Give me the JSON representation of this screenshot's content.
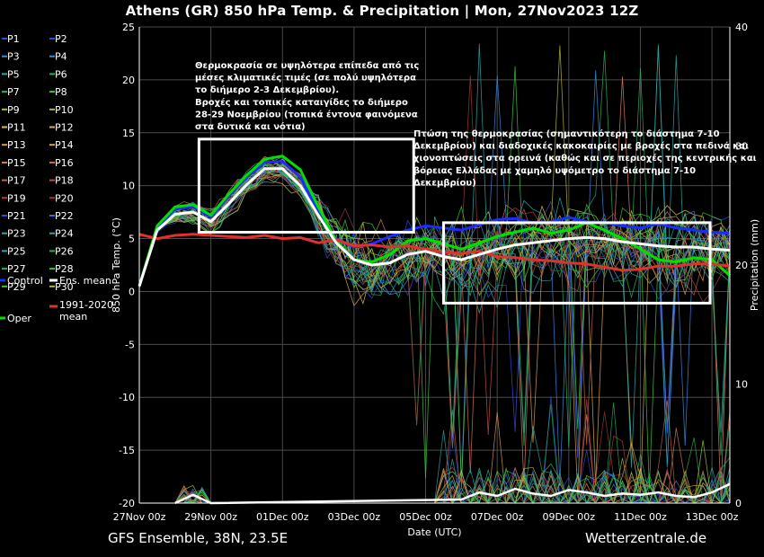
{
  "title": "Athens  (GR)  850 hPa Temp. & Precipitation | Mon, 27Nov2023 12Z",
  "footer": {
    "left": "GFS Ensemble, 38N, 23.5E",
    "right": "Wetterzentrale.de"
  },
  "chart_data": {
    "type": "line",
    "xlabel": "Date (UTC)",
    "ylabel": "850 hPa Temp. (°C)",
    "y2label": "Precipitation (mm)",
    "ylim": [
      -20,
      25
    ],
    "y2lim": [
      0,
      40
    ],
    "yticks": [
      "25",
      "20",
      "15",
      "10",
      "5",
      "0",
      "-5",
      "-10",
      "-15",
      "-20"
    ],
    "y2ticks": [
      "40",
      "30",
      "20",
      "10",
      "0"
    ],
    "xticks": [
      "27Nov 00z",
      "29Nov 00z",
      "01Dec 00z",
      "03Dec 00z",
      "05Dec 00z",
      "07Dec 00z",
      "09Dec 00z",
      "11Dec 00z",
      "13Dec 00z"
    ],
    "x_hours_range": [
      0,
      396
    ],
    "grid": true,
    "legend_placement": "left outside",
    "legend": [
      {
        "name": "P1",
        "color": "#2f4fd0"
      },
      {
        "name": "P2",
        "color": "#2f4fd0"
      },
      {
        "name": "P3",
        "color": "#3a8ad8"
      },
      {
        "name": "P4",
        "color": "#3a8ad8"
      },
      {
        "name": "P5",
        "color": "#2ba8a8"
      },
      {
        "name": "P6",
        "color": "#27b060"
      },
      {
        "name": "P7",
        "color": "#27b060"
      },
      {
        "name": "P8",
        "color": "#3ec43e"
      },
      {
        "name": "P9",
        "color": "#9ccf2a"
      },
      {
        "name": "P10",
        "color": "#b6b93a"
      },
      {
        "name": "P11",
        "color": "#e0c040"
      },
      {
        "name": "P12",
        "color": "#d8b040"
      },
      {
        "name": "P13",
        "color": "#d89a50"
      },
      {
        "name": "P14",
        "color": "#d8a050"
      },
      {
        "name": "P15",
        "color": "#d88060"
      },
      {
        "name": "P16",
        "color": "#d07060"
      },
      {
        "name": "P17",
        "color": "#c06050"
      },
      {
        "name": "P18",
        "color": "#c05040"
      },
      {
        "name": "P19",
        "color": "#b04040"
      },
      {
        "name": "P20",
        "color": "#a03838"
      },
      {
        "name": "P21",
        "color": "#2f4fd0"
      },
      {
        "name": "P22",
        "color": "#3a6ad8"
      },
      {
        "name": "P23",
        "color": "#2ba8a8"
      },
      {
        "name": "P24",
        "color": "#2ba8a8"
      },
      {
        "name": "P25",
        "color": "#2ba8a8"
      },
      {
        "name": "P26",
        "color": "#27b060"
      },
      {
        "name": "P27",
        "color": "#27b060"
      },
      {
        "name": "P28",
        "color": "#3ec43e"
      },
      {
        "name": "P29",
        "color": "#3ec43e"
      },
      {
        "name": "P30",
        "color": "#b6b93a"
      },
      {
        "name": "Control",
        "color": "#1a2cff"
      },
      {
        "name": "Ens. mean",
        "color": "#ffffff"
      },
      {
        "name": "1991-2020 mean",
        "color": "#e03030"
      },
      {
        "name": "Oper",
        "color": "#00e000"
      }
    ],
    "series": [
      {
        "name": "Ens. mean",
        "x": [
          0,
          12,
          24,
          36,
          48,
          60,
          72,
          84,
          96,
          108,
          120,
          132,
          144,
          156,
          168,
          180,
          192,
          204,
          216,
          228,
          240,
          252,
          264,
          276,
          288,
          300,
          312,
          324,
          336,
          348,
          360,
          372,
          384,
          396
        ],
        "values": [
          0.5,
          5.8,
          7.3,
          7.5,
          6.6,
          8.3,
          10.1,
          11.6,
          11.6,
          10.0,
          7.2,
          4.6,
          3.0,
          2.5,
          2.7,
          3.5,
          3.8,
          3.3,
          3.0,
          3.5,
          4.0,
          4.4,
          4.6,
          4.8,
          5.0,
          5.1,
          5.0,
          4.7,
          4.5,
          4.3,
          4.2,
          4.2,
          4.0,
          3.9
        ]
      },
      {
        "name": "Control",
        "x": [
          0,
          12,
          24,
          36,
          48,
          60,
          72,
          84,
          96,
          108,
          120,
          132,
          144,
          156,
          168,
          180,
          192,
          204,
          216,
          228,
          240,
          252,
          264,
          276,
          288,
          300,
          312,
          324,
          336,
          348,
          360,
          372,
          384,
          396
        ],
        "values": [
          0.5,
          6.0,
          7.8,
          8.0,
          7.0,
          9.0,
          10.8,
          12.2,
          12.3,
          10.8,
          7.5,
          5.0,
          4.2,
          4.5,
          5.2,
          5.8,
          6.2,
          6.0,
          5.8,
          6.3,
          6.8,
          6.9,
          6.5,
          6.6,
          7.0,
          6.6,
          6.5,
          6.2,
          6.0,
          6.4,
          6.0,
          5.8,
          5.6,
          5.5
        ]
      },
      {
        "name": "Oper",
        "x": [
          0,
          12,
          24,
          36,
          48,
          60,
          72,
          84,
          96,
          108,
          120,
          132,
          144,
          156,
          168,
          180,
          192,
          204,
          216,
          228,
          240,
          252,
          264,
          276,
          288,
          300,
          312,
          324,
          336,
          348,
          360,
          372,
          384,
          396
        ],
        "values": [
          0.5,
          6.2,
          8.0,
          8.2,
          7.2,
          9.2,
          11.0,
          12.5,
          12.8,
          11.5,
          8.0,
          4.8,
          3.0,
          2.8,
          3.5,
          4.8,
          5.0,
          4.5,
          4.0,
          4.6,
          5.2,
          5.6,
          6.0,
          5.5,
          5.8,
          6.5,
          5.8,
          5.0,
          4.0,
          3.0,
          2.8,
          3.2,
          3.0,
          1.5
        ]
      },
      {
        "name": "1991-2020 mean",
        "x": [
          0,
          12,
          24,
          36,
          48,
          60,
          72,
          84,
          96,
          108,
          120,
          132,
          144,
          156,
          168,
          180,
          192,
          204,
          216,
          228,
          240,
          252,
          264,
          276,
          288,
          300,
          312,
          324,
          336,
          348,
          360,
          372,
          384,
          396
        ],
        "values": [
          5.4,
          5.0,
          5.3,
          5.4,
          5.3,
          5.2,
          5.1,
          5.3,
          5.0,
          5.1,
          4.6,
          4.9,
          4.3,
          4.4,
          4.2,
          4.3,
          4.0,
          3.7,
          3.6,
          3.8,
          3.3,
          3.2,
          3.0,
          2.9,
          2.7,
          2.6,
          2.3,
          2.0,
          2.1,
          2.4,
          2.4,
          2.6,
          2.6,
          2.4
        ]
      },
      {
        "name": "Ens. mean precipitation",
        "x": [
          24,
          36,
          48,
          216,
          228,
          240,
          252,
          264,
          276,
          288,
          300,
          312,
          324,
          336,
          348,
          360,
          372,
          384,
          396
        ],
        "values": [
          0,
          0.7,
          0,
          0.3,
          0.9,
          0.6,
          1.2,
          0.8,
          0.6,
          1.1,
          0.9,
          0.6,
          0.8,
          0.7,
          0.9,
          0.6,
          0.5,
          0.9,
          1.6
        ]
      }
    ],
    "annotations": [
      "Θερμοκρασία σε υψηλότερα επίπεδα από τις μέσες κλιματικές τιμές (σε πολύ υψηλότερα το διήμερο 2-3 Δεκεμβρίου). Βροχές και τοπικές καταιγίδες το διήμερο 28-29 Νοεμβρίου (τοπικά έντονα φαινόμενα στα δυτικά και νότια)",
      "Πτώση της θερμοκρασίας (σημαντικότερη το διάστημα 7-10 Δεκεμβρίου) και διαδοχικές κακοκαιρίες με βροχές στα πεδινά και χιονοπτώσεις στα ορεινά (καθώς και σε περιοχές της κεντρικής και βόρειας Ελλάδας με χαμηλό υψόμετρο το διάστημα 7-10 Δεκεμβρίου)"
    ],
    "annotation_lines": [
      [
        "Θερμοκρασία σε υψηλότερα επίπεδα από τις",
        "μέσες κλιματικές τιμές (σε πολύ υψηλότερα",
        "το διήμερο 2-3 Δεκεμβρίου).",
        "Βροχές και τοπικές καταιγίδες το διήμερο",
        "28-29 Νοεμβρίου (τοπικά έντονα φαινόμενα",
        "στα δυτικά και νότια)"
      ],
      [
        "Πτώση της θερμοκρασίας (σημαντικότερη το διάστημα 7-10",
        "Δεκεμβρίου) και διαδοχικές κακοκαιρίες με βροχές στα πεδινά και",
        "χιονοπτώσεις στα ορεινά (καθώς και σε περιοχές της κεντρικής και",
        "βόρειας Ελλάδας με χαμηλό υψόμετρο το διάστημα 7-10",
        "Δεκεμβρίου)"
      ]
    ],
    "highlight_boxes": [
      {
        "x_hours": [
          40,
          184
        ],
        "y_range": [
          5.6,
          14.4
        ]
      },
      {
        "x_hours": [
          204,
          420
        ],
        "y_range": [
          -1.1,
          6.5
        ]
      }
    ],
    "colors": {
      "background": "#000000",
      "grid": "#4a4a4a",
      "boxes": "#ffffff"
    }
  }
}
